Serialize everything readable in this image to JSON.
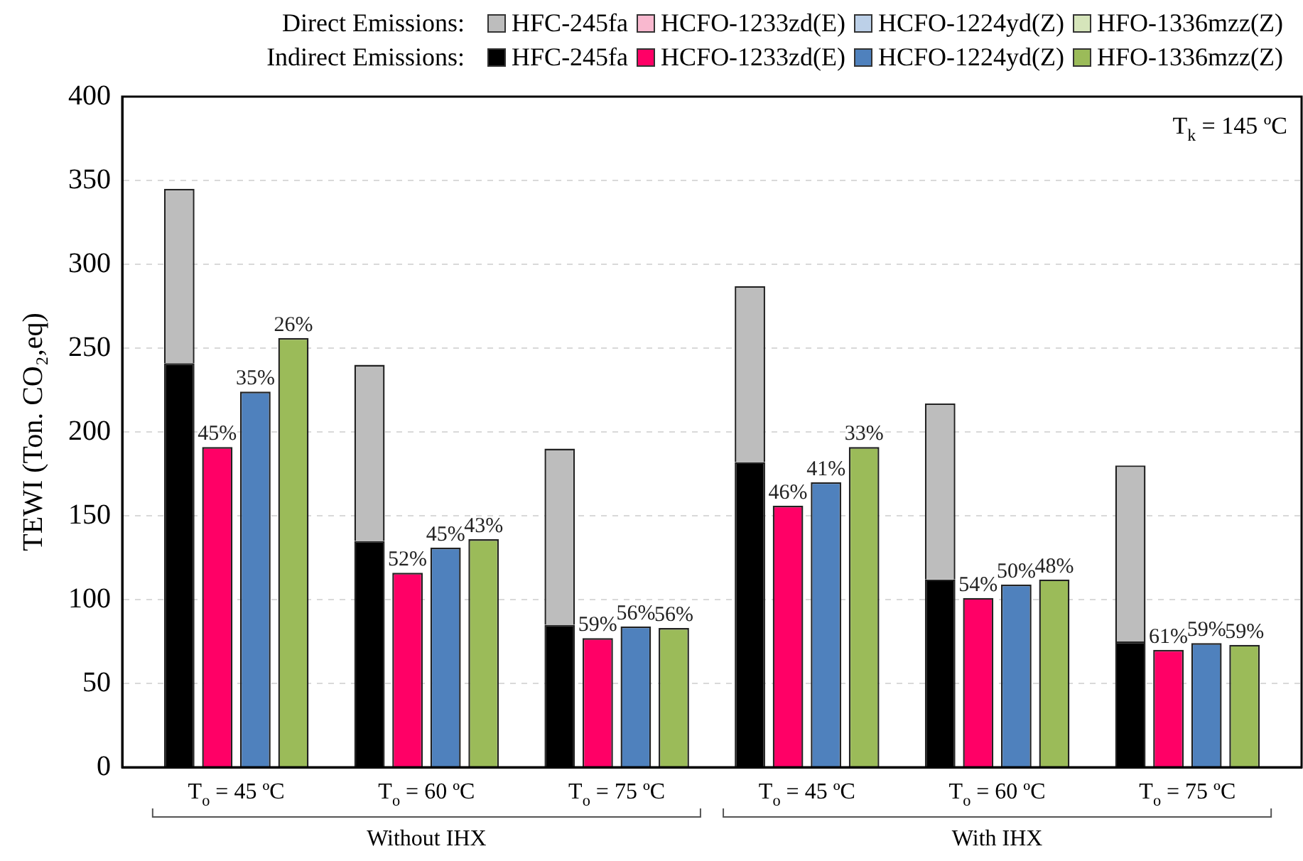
{
  "chart_data": {
    "type": "bar",
    "stacked": true,
    "categories": [
      null,
      null,
      null,
      null,
      null,
      null,
      null,
      null,
      null,
      null,
      null,
      null,
      null,
      null,
      null,
      null,
      null,
      null,
      null,
      null,
      null,
      null,
      null,
      null,
      null,
      null,
      null,
      null,
      null,
      null,
      null
    ],
    "ylabel": "TEWI (Ton. CO₂,eq)",
    "ylim": [
      0,
      400
    ],
    "yticks": [
      0,
      50,
      100,
      150,
      200,
      250,
      300,
      350,
      400
    ],
    "grid": "y",
    "legend": "top right",
    "series": [
      {
        "name": "HFC-245fa",
        "color": "#000000",
        "values": [
          null,
          241,
          null,
          null,
          null,
          null,
          135,
          null,
          null,
          null,
          null,
          85,
          null,
          null,
          null,
          null,
          182,
          null,
          null,
          null,
          null,
          112,
          null,
          null,
          null,
          null,
          75,
          null,
          null,
          null,
          null
        ]
      },
      {
        "name": "HCFO-1233zd(E)",
        "color": "#ff0066",
        "values": [
          null,
          null,
          191,
          null,
          null,
          null,
          null,
          116,
          null,
          null,
          null,
          null,
          77,
          null,
          null,
          null,
          null,
          156,
          null,
          null,
          null,
          null,
          101,
          null,
          null,
          null,
          null,
          70,
          null,
          null,
          null
        ]
      },
      {
        "name": "HCFO-1224yd(Z)",
        "color": "#4f81bd",
        "values": [
          null,
          null,
          null,
          224,
          null,
          null,
          null,
          null,
          131,
          null,
          null,
          null,
          null,
          84,
          null,
          null,
          null,
          null,
          170,
          null,
          null,
          null,
          null,
          109,
          null,
          null,
          null,
          null,
          74,
          null,
          null
        ]
      },
      {
        "name": "HFO-1336mzz(Z)",
        "color": "#9bbb59",
        "values": [
          null,
          null,
          null,
          null,
          256,
          null,
          null,
          null,
          null,
          136,
          null,
          null,
          null,
          null,
          83,
          null,
          null,
          null,
          null,
          191,
          null,
          null,
          null,
          null,
          112,
          null,
          null,
          null,
          null,
          73,
          null
        ]
      },
      {
        "name": "HFC-245fa",
        "color": "#bdbdbd",
        "values": [
          null,
          104,
          null,
          null,
          null,
          null,
          105,
          null,
          null,
          null,
          null,
          105,
          null,
          null,
          null,
          null,
          105,
          null,
          null,
          null,
          null,
          105,
          null,
          null,
          null,
          null,
          105,
          null,
          null,
          null,
          null
        ]
      },
      {
        "name": "HCFO-1233zd(E)",
        "color": "#f9b8cf",
        "values": [
          null,
          null,
          0,
          null,
          null,
          null,
          null,
          0,
          null,
          null,
          null,
          null,
          0,
          null,
          null,
          null,
          null,
          0,
          null,
          null,
          null,
          null,
          0,
          null,
          null,
          null,
          null,
          0,
          null,
          null,
          null
        ]
      },
      {
        "name": "HCFO-1224yd(Z)",
        "color": "#bcd0e8",
        "values": [
          null,
          null,
          null,
          0,
          null,
          null,
          null,
          null,
          0,
          null,
          null,
          null,
          null,
          0,
          null,
          null,
          null,
          null,
          0,
          null,
          null,
          null,
          null,
          0,
          null,
          null,
          null,
          null,
          0,
          null,
          null
        ]
      },
      {
        "name": "HFO-1336mzz(Z)",
        "color": "#d6e5bb",
        "values": [
          null,
          null,
          null,
          null,
          0,
          null,
          null,
          null,
          null,
          0,
          null,
          null,
          null,
          null,
          0,
          null,
          null,
          null,
          null,
          0,
          null,
          null,
          null,
          null,
          0,
          null,
          null,
          null,
          null,
          0,
          null
        ]
      }
    ],
    "annotations": [
      "Direct Emissions:",
      "Indirect Emissions:",
      "T$_{k}$ = 145 ºC",
      "Without IHX",
      "With IHX",
      "T$_{o}$ = 45 ºC",
      "T$_{o}$ = 60 ºC",
      "T$_{o}$ = 75 ºC",
      "T$_{o}$ = 45 ºC",
      "T$_{o}$ = 60 ºC",
      "T$_{o}$ = 75 ºC",
      "45%",
      "35%",
      "26%",
      "52%",
      "45%",
      "43%",
      "59%",
      "56%",
      "56%",
      "46%",
      "41%",
      "33%",
      "54%",
      "50%",
      "48%",
      "61%",
      "59%",
      "59%"
    ]
  }
}
